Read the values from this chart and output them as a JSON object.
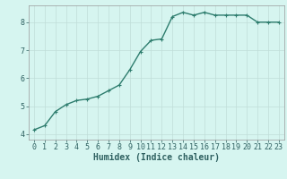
{
  "x": [
    0,
    1,
    2,
    3,
    4,
    5,
    6,
    7,
    8,
    9,
    10,
    11,
    12,
    13,
    14,
    15,
    16,
    17,
    18,
    19,
    20,
    21,
    22,
    23
  ],
  "y": [
    4.15,
    4.3,
    4.8,
    5.05,
    5.2,
    5.25,
    5.35,
    5.55,
    5.75,
    6.3,
    6.95,
    7.35,
    7.4,
    8.2,
    8.35,
    8.25,
    8.35,
    8.25,
    8.25,
    8.25,
    8.25,
    8.0,
    8.0,
    8.0
  ],
  "line_color": "#2e7d6e",
  "marker": "+",
  "marker_size": 3,
  "bg_color": "#d6f5f0",
  "grid_color": "#c0ddd8",
  "xlabel": "Humidex (Indice chaleur)",
  "xlim": [
    -0.5,
    23.5
  ],
  "ylim": [
    3.8,
    8.6
  ],
  "yticks": [
    4,
    5,
    6,
    7,
    8
  ],
  "xticks": [
    0,
    1,
    2,
    3,
    4,
    5,
    6,
    7,
    8,
    9,
    10,
    11,
    12,
    13,
    14,
    15,
    16,
    17,
    18,
    19,
    20,
    21,
    22,
    23
  ],
  "xlabel_fontsize": 7,
  "tick_fontsize": 6,
  "line_width": 1.0,
  "tick_color": "#2e6060",
  "label_color": "#2e6060"
}
